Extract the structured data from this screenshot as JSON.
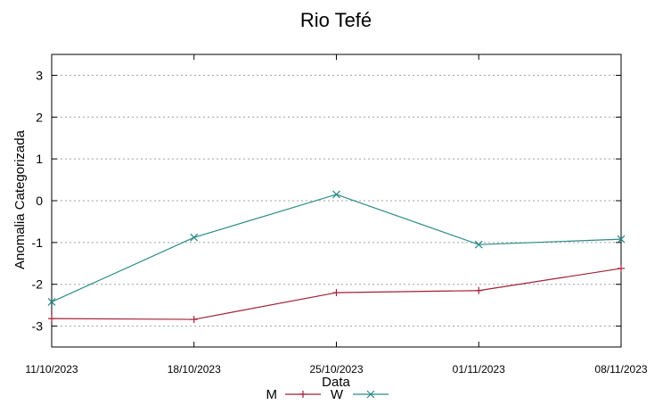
{
  "chart_data": {
    "type": "line",
    "title": "Rio Tefé",
    "xlabel": "Data",
    "ylabel": "Anomalia Categorizada",
    "categories": [
      "11/10/2023",
      "18/10/2023",
      "25/10/2023",
      "01/11/2023",
      "08/11/2023"
    ],
    "ylim": [
      -3.5,
      3.5
    ],
    "yticks": [
      -3,
      -2,
      -1,
      0,
      1,
      2,
      3
    ],
    "grid": true,
    "legend_position": "bottom",
    "series": [
      {
        "name": "M",
        "color": "#a31f34",
        "marker": "plus",
        "values": [
          -2.82,
          -2.84,
          -2.2,
          -2.15,
          -1.62
        ]
      },
      {
        "name": "W",
        "color": "#2a8a86",
        "marker": "cross",
        "values": [
          -2.42,
          -0.88,
          0.15,
          -1.05,
          -0.92
        ]
      }
    ]
  }
}
